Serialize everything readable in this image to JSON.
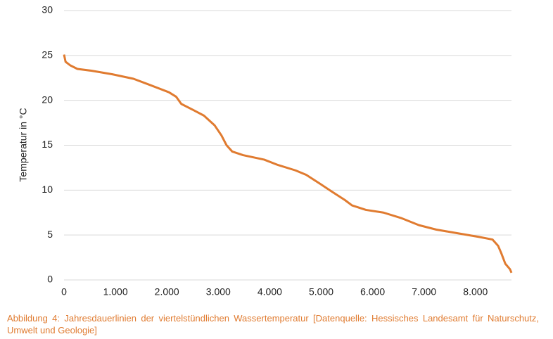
{
  "chart_data": {
    "type": "line",
    "ylabel": "Temperatur in °C",
    "caption": "Abbildung 4: Jahresdauerlinien der viertelstündlichen Wassertemperatur [Datenquelle: Hessisches Landesamt für Naturschutz, Umwelt und Geologie]",
    "xlim": [
      0,
      8700
    ],
    "ylim": [
      0,
      30
    ],
    "xticks": [
      0,
      {
        "value": 1000,
        "label": "1.000"
      },
      {
        "value": 2000,
        "label": "2.000"
      },
      {
        "value": 3000,
        "label": "3.000"
      },
      {
        "value": 4000,
        "label": "4.000"
      },
      {
        "value": 5000,
        "label": "5.000"
      },
      {
        "value": 6000,
        "label": "6.000"
      },
      {
        "value": 7000,
        "label": "7.000"
      },
      {
        "value": 8000,
        "label": "8.000"
      }
    ],
    "yticks": [
      0,
      5,
      10,
      15,
      20,
      25,
      30
    ],
    "grid": true,
    "color": "#e07b30",
    "x": [
      0,
      30,
      120,
      260,
      530,
      940,
      1350,
      1630,
      2040,
      2180,
      2280,
      2520,
      2720,
      2930,
      3060,
      3160,
      3270,
      3480,
      3890,
      4160,
      4500,
      4710,
      4980,
      5190,
      5460,
      5600,
      5870,
      6210,
      6550,
      6900,
      7240,
      7650,
      8060,
      8330,
      8440,
      8500,
      8580,
      8670,
      8700
    ],
    "values": [
      25.1,
      24.3,
      23.9,
      23.5,
      23.3,
      22.9,
      22.4,
      21.8,
      20.9,
      20.4,
      19.6,
      18.9,
      18.3,
      17.2,
      16.1,
      15.0,
      14.3,
      13.9,
      13.4,
      12.8,
      12.2,
      11.7,
      10.7,
      9.9,
      8.9,
      8.3,
      7.8,
      7.5,
      6.9,
      6.1,
      5.6,
      5.2,
      4.8,
      4.5,
      3.8,
      3.0,
      1.8,
      1.2,
      0.8
    ]
  }
}
